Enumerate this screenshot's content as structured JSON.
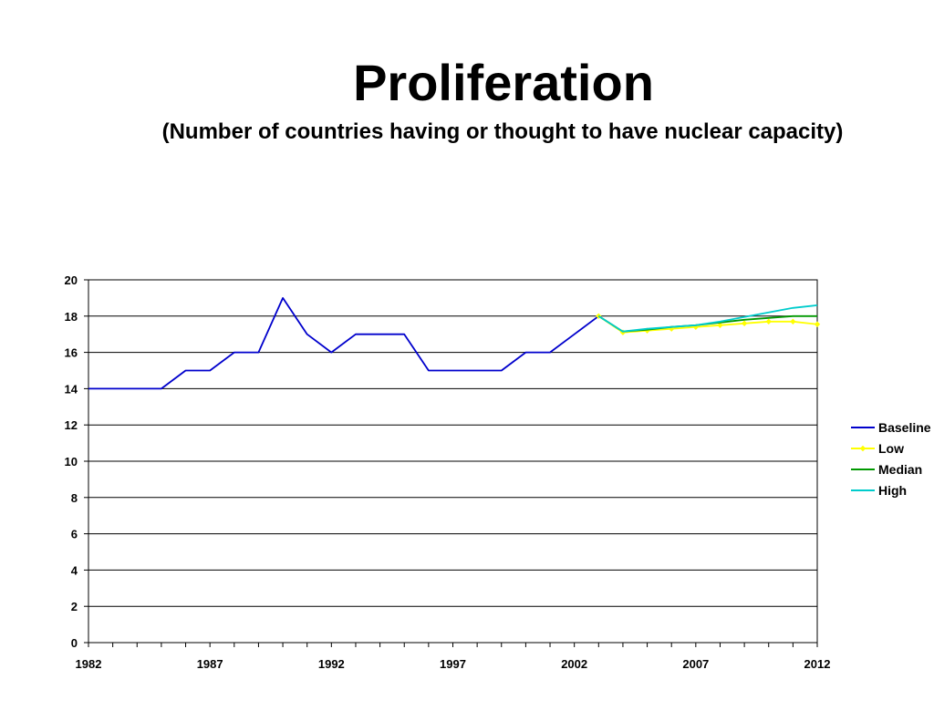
{
  "title": "Proliferation",
  "subtitle": "(Number of countries having or thought to have nuclear capacity)",
  "colors": {
    "baseline": "#0000cc",
    "low": "#ffff00",
    "median": "#009900",
    "high": "#00cccc",
    "grid": "#000000"
  },
  "chart_data": {
    "type": "line",
    "title": "Proliferation",
    "subtitle": "(Number of countries having or thought to have nuclear capacity)",
    "xlabel": "",
    "ylabel": "",
    "xlim": [
      1982,
      2012
    ],
    "ylim": [
      0,
      20
    ],
    "x_ticks": [
      1982,
      1987,
      1992,
      1997,
      2002,
      2007,
      2012
    ],
    "y_ticks": [
      0,
      2,
      4,
      6,
      8,
      10,
      12,
      14,
      16,
      18,
      20
    ],
    "grid": true,
    "legend_position": "right",
    "series": [
      {
        "name": "Baseline",
        "color": "#0000cc",
        "marker": "none",
        "x": [
          1982,
          1983,
          1984,
          1985,
          1986,
          1987,
          1988,
          1989,
          1990,
          1991,
          1992,
          1993,
          1994,
          1995,
          1996,
          1997,
          1998,
          1999,
          2000,
          2001,
          2002,
          2003
        ],
        "y": [
          14,
          14,
          14,
          14,
          15,
          15,
          16,
          16,
          19,
          17,
          16,
          17,
          17,
          17,
          15,
          15,
          15,
          15,
          16,
          16,
          17,
          18
        ]
      },
      {
        "name": "Low",
        "color": "#ffff00",
        "marker": "diamond",
        "x": [
          2003,
          2004,
          2005,
          2006,
          2007,
          2008,
          2009,
          2010,
          2011,
          2012
        ],
        "y": [
          18,
          17.1,
          17.2,
          17.3,
          17.4,
          17.5,
          17.6,
          17.7,
          17.7,
          17.55
        ]
      },
      {
        "name": "Median",
        "color": "#009900",
        "marker": "none",
        "x": [
          2003,
          2004,
          2005,
          2006,
          2007,
          2008,
          2009,
          2010,
          2011,
          2012
        ],
        "y": [
          18,
          17.15,
          17.25,
          17.4,
          17.5,
          17.65,
          17.8,
          17.9,
          18.0,
          18.0
        ]
      },
      {
        "name": "High",
        "color": "#00cccc",
        "marker": "none",
        "x": [
          2003,
          2004,
          2005,
          2006,
          2007,
          2008,
          2009,
          2010,
          2011,
          2012
        ],
        "y": [
          18,
          17.15,
          17.3,
          17.4,
          17.5,
          17.7,
          17.95,
          18.2,
          18.45,
          18.6
        ]
      }
    ]
  }
}
